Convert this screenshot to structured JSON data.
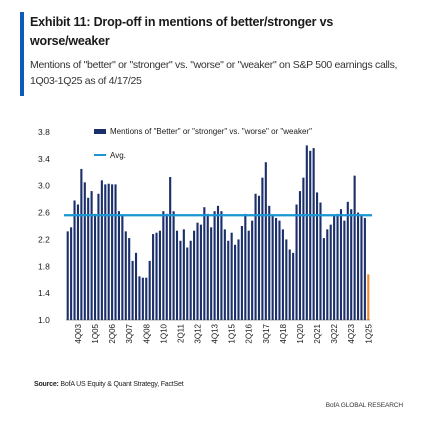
{
  "header": {
    "title": "Exhibit 11: Drop-off in mentions of better/stronger vs worse/weaker",
    "subtitle": "Mentions of \"better\" or \"stronger\" vs. \"worse\" or \"weaker\" on S&P 500 earnings calls, 1Q03-1Q25 as of 4/17/25"
  },
  "footer": {
    "source_label": "Source:",
    "source_text": "BofA US Equity & Quant Strategy, FactSet",
    "credit": "BofA GLOBAL RESEARCH"
  },
  "colors": {
    "bars": "#1b2f6b",
    "avg_line": "#1996d3",
    "last_bar": "#f08a24",
    "accent": "#0a5cb8"
  },
  "chart_data": {
    "type": "bar",
    "ylim": [
      1.0,
      3.8
    ],
    "yticks": [
      1.0,
      1.4,
      1.8,
      2.2,
      2.6,
      3.0,
      3.4,
      3.8
    ],
    "ytick_labels": [
      "1.0",
      "1.4",
      "1.8",
      "2.2",
      "2.6",
      "3.0",
      "3.4",
      "3.8"
    ],
    "xtick_labels": [
      "4Q03",
      "1Q05",
      "2Q06",
      "3Q07",
      "4Q08",
      "1Q10",
      "2Q11",
      "3Q12",
      "4Q13",
      "1Q15",
      "2Q16",
      "3Q17",
      "4Q18",
      "1Q20",
      "2Q21",
      "3Q22",
      "4Q23",
      "1Q25"
    ],
    "xtick_start_index": 3,
    "xtick_step": 5,
    "legend_position": "top-left",
    "grid": false,
    "series": [
      {
        "name": "Mentions of \"Better\" or \"stronger\" vs. \"worse\" or \"weaker\"",
        "kind": "bar",
        "categories": [
          "1Q03",
          "2Q03",
          "3Q03",
          "4Q03",
          "1Q04",
          "2Q04",
          "3Q04",
          "4Q04",
          "1Q05",
          "2Q05",
          "3Q05",
          "4Q05",
          "1Q06",
          "2Q06",
          "3Q06",
          "4Q06",
          "1Q07",
          "2Q07",
          "3Q07",
          "4Q07",
          "1Q08",
          "2Q08",
          "3Q08",
          "4Q08",
          "1Q09",
          "2Q09",
          "3Q09",
          "4Q09",
          "1Q10",
          "2Q10",
          "3Q10",
          "4Q10",
          "1Q11",
          "2Q11",
          "3Q11",
          "4Q11",
          "1Q12",
          "2Q12",
          "3Q12",
          "4Q12",
          "1Q13",
          "2Q13",
          "3Q13",
          "4Q13",
          "1Q14",
          "2Q14",
          "3Q14",
          "4Q14",
          "1Q15",
          "2Q15",
          "3Q15",
          "4Q15",
          "1Q16",
          "2Q16",
          "3Q16",
          "4Q16",
          "1Q17",
          "2Q17",
          "3Q17",
          "4Q17",
          "1Q18",
          "2Q18",
          "3Q18",
          "4Q18",
          "1Q19",
          "2Q19",
          "3Q19",
          "4Q19",
          "1Q20",
          "2Q20",
          "3Q20",
          "4Q20",
          "1Q21",
          "2Q21",
          "3Q21",
          "4Q21",
          "1Q22",
          "2Q22",
          "3Q22",
          "4Q22",
          "1Q23",
          "2Q23",
          "3Q23",
          "4Q23",
          "1Q24",
          "2Q24",
          "3Q24",
          "4Q24",
          "1Q25"
        ],
        "values": [
          2.32,
          2.38,
          2.78,
          2.72,
          3.25,
          3.05,
          2.82,
          2.92,
          2.58,
          2.88,
          3.08,
          3.02,
          3.03,
          3.02,
          3.02,
          2.62,
          2.55,
          2.32,
          2.22,
          1.88,
          2.0,
          1.65,
          1.63,
          1.63,
          1.88,
          2.28,
          2.3,
          2.33,
          2.62,
          2.58,
          3.13,
          2.62,
          2.33,
          2.18,
          2.35,
          2.08,
          2.18,
          2.33,
          2.45,
          2.42,
          2.68,
          2.58,
          2.38,
          2.62,
          2.7,
          2.62,
          2.35,
          2.18,
          2.3,
          2.12,
          2.2,
          2.4,
          2.58,
          2.33,
          2.48,
          2.88,
          2.85,
          3.12,
          3.35,
          2.7,
          2.56,
          2.52,
          2.48,
          2.35,
          2.2,
          2.05,
          2.0,
          2.72,
          2.92,
          3.12,
          3.6,
          3.52,
          3.56,
          2.9,
          2.75,
          2.22,
          2.35,
          2.42,
          2.55,
          2.58,
          2.65,
          2.48,
          2.76,
          2.65,
          3.15,
          2.6,
          2.55,
          2.52,
          1.68
        ]
      },
      {
        "name": "Avg.",
        "kind": "line",
        "value": 2.56
      }
    ]
  }
}
